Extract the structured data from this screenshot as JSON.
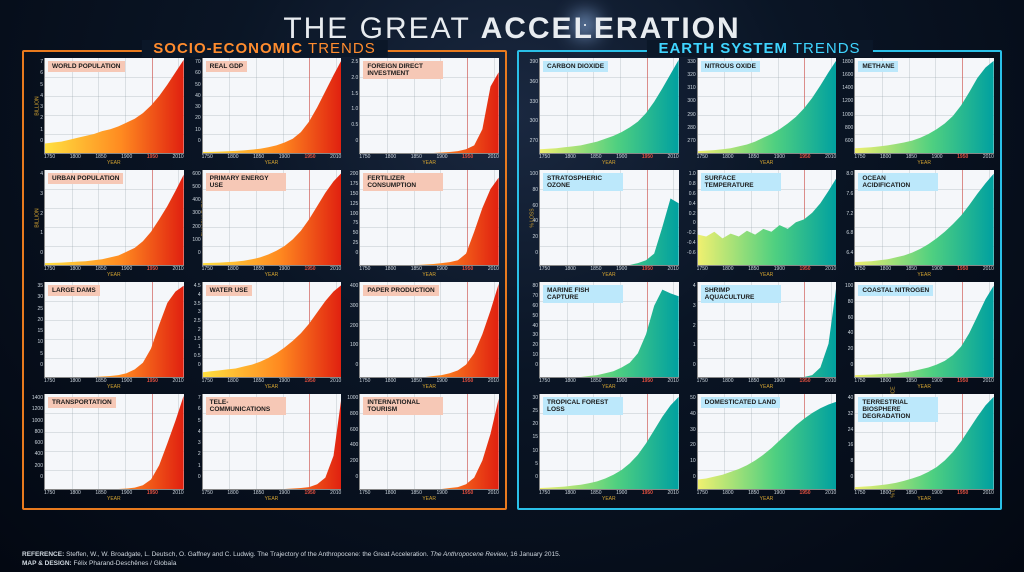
{
  "title_pre": "THE GREAT ",
  "title_bold": "ACCELERATION",
  "x_ticks": [
    "1750",
    "1800",
    "1850",
    "1900",
    "1950",
    "2010"
  ],
  "x_label": "YEAR",
  "marker_year_pos": 0.769,
  "plot_bg": "#f5f7fa",
  "footer_ref_label": "REFERENCE:",
  "footer_ref_text": " Steffen, W., W. Broadgate, L. Deutsch, O. Gaffney and C. Ludwig. The Trajectory of the Anthropocene: the Great Acceleration. ",
  "footer_ref_ital": "The Anthropocene Review",
  "footer_ref_date": ", 16 January 2015.",
  "footer_map_label": "MAP & DESIGN:",
  "footer_map_text": " Félix Pharand-Deschênes / Globaïa",
  "panels": {
    "socio": {
      "title_accent": "SOCIO-ECONOMIC",
      "title_rest": " TRENDS",
      "border_color": "#e87a1e",
      "title_bg": "#f6c8b6",
      "gradient": [
        "#ffe040",
        "#ff8a20",
        "#e02010"
      ],
      "charts": [
        {
          "title": "WORLD POPULATION",
          "ylabel": "BILLION",
          "ylim": [
            0,
            8
          ],
          "yticks": [
            "0",
            "1",
            "2",
            "3",
            "4",
            "5",
            "6",
            "7"
          ],
          "data": [
            0.1,
            0.11,
            0.12,
            0.14,
            0.16,
            0.18,
            0.2,
            0.23,
            0.25,
            0.28,
            0.32,
            0.36,
            0.42,
            0.5,
            0.6,
            0.72,
            0.85,
            0.98
          ]
        },
        {
          "title": "REAL GDP",
          "ylabel": "TRILLION US DOLLARS",
          "ylim": [
            0,
            70
          ],
          "yticks": [
            "0",
            "10",
            "20",
            "30",
            "40",
            "50",
            "60",
            "70"
          ],
          "data": [
            0.01,
            0.012,
            0.015,
            0.018,
            0.022,
            0.028,
            0.035,
            0.045,
            0.06,
            0.08,
            0.11,
            0.15,
            0.22,
            0.33,
            0.48,
            0.65,
            0.82,
            0.98
          ]
        },
        {
          "title": "FOREIGN DIRECT INVESTMENT",
          "ylabel": "TRILLION US DOLLARS",
          "ylim": [
            0,
            2.5
          ],
          "yticks": [
            "0",
            "0.5",
            "1.0",
            "1.5",
            "2.0",
            "2.5"
          ],
          "data": [
            0,
            0,
            0,
            0,
            0,
            0,
            0,
            0,
            0,
            0,
            0.005,
            0.01,
            0.02,
            0.04,
            0.08,
            0.25,
            0.7,
            0.85
          ]
        },
        {
          "title": "URBAN POPULATION",
          "ylabel": "BILLION",
          "ylim": [
            0,
            4
          ],
          "yticks": [
            "0",
            "1",
            "2",
            "3",
            "4"
          ],
          "data": [
            0.02,
            0.022,
            0.025,
            0.03,
            0.035,
            0.04,
            0.05,
            0.06,
            0.08,
            0.1,
            0.14,
            0.18,
            0.25,
            0.35,
            0.48,
            0.62,
            0.78,
            0.95
          ]
        },
        {
          "title": "PRIMARY ENERGY USE",
          "ylabel": "EXAJOULE (EJ)",
          "ylim": [
            0,
            600
          ],
          "yticks": [
            "0",
            "100",
            "200",
            "300",
            "400",
            "500",
            "600"
          ],
          "data": [
            0.02,
            0.022,
            0.025,
            0.03,
            0.035,
            0.045,
            0.06,
            0.08,
            0.11,
            0.15,
            0.2,
            0.27,
            0.36,
            0.48,
            0.62,
            0.76,
            0.88,
            0.97
          ]
        },
        {
          "title": "FERTILIZER CONSUMPTION",
          "ylabel": "MILLION TONNES",
          "ylim": [
            0,
            200
          ],
          "yticks": [
            "0",
            "25",
            "50",
            "75",
            "100",
            "125",
            "150",
            "175",
            "200"
          ],
          "data": [
            0,
            0,
            0,
            0,
            0,
            0,
            0,
            0,
            0.005,
            0.01,
            0.02,
            0.03,
            0.05,
            0.12,
            0.35,
            0.6,
            0.8,
            0.92
          ]
        },
        {
          "title": "LARGE DAMS",
          "ylabel": "THOUSAND DAMS",
          "ylim": [
            0,
            35
          ],
          "yticks": [
            "0",
            "5",
            "10",
            "15",
            "20",
            "25",
            "30",
            "35"
          ],
          "data": [
            0,
            0,
            0,
            0,
            0,
            0,
            0,
            0.005,
            0.01,
            0.02,
            0.04,
            0.08,
            0.15,
            0.3,
            0.55,
            0.78,
            0.9,
            0.96
          ]
        },
        {
          "title": "WATER USE",
          "ylabel": "THOUSAND KM³",
          "ylim": [
            0,
            4.5
          ],
          "yticks": [
            "0",
            "0.5",
            "1",
            "1.5",
            "2",
            "2.5",
            "3",
            "3.5",
            "4",
            "4.5"
          ],
          "data": [
            0.05,
            0.06,
            0.07,
            0.08,
            0.09,
            0.11,
            0.13,
            0.16,
            0.2,
            0.25,
            0.31,
            0.38,
            0.46,
            0.56,
            0.68,
            0.8,
            0.9,
            0.97
          ]
        },
        {
          "title": "PAPER PRODUCTION",
          "ylabel": "MILLION TONNES",
          "ylim": [
            0,
            400
          ],
          "yticks": [
            "0",
            "100",
            "200",
            "300",
            "400"
          ],
          "data": [
            0,
            0,
            0,
            0,
            0,
            0,
            0,
            0,
            0,
            0.01,
            0.02,
            0.04,
            0.07,
            0.13,
            0.25,
            0.45,
            0.7,
            0.98
          ]
        },
        {
          "title": "TRANSPORTATION",
          "ylabel": "MILLION MOTOR VEHICLES",
          "ylim": [
            0,
            1400
          ],
          "yticks": [
            "0",
            "200",
            "400",
            "600",
            "800",
            "1000",
            "1200",
            "1400"
          ],
          "data": [
            0,
            0,
            0,
            0,
            0,
            0,
            0,
            0,
            0,
            0,
            0.005,
            0.015,
            0.04,
            0.1,
            0.25,
            0.48,
            0.72,
            0.98
          ]
        },
        {
          "title": "TELE-COMMUNICATIONS",
          "ylabel": "BILLION PHONE SUBSCRIPTIONS",
          "ylim": [
            0,
            7
          ],
          "yticks": [
            "0",
            "1",
            "2",
            "3",
            "4",
            "5",
            "6",
            "7"
          ],
          "data": [
            0,
            0,
            0,
            0,
            0,
            0,
            0,
            0,
            0,
            0,
            0,
            0.005,
            0.01,
            0.02,
            0.05,
            0.12,
            0.35,
            0.98
          ]
        },
        {
          "title": "INTERNATIONAL TOURISM",
          "ylabel": "MILLION ARRIVALS",
          "ylim": [
            0,
            1000
          ],
          "yticks": [
            "0",
            "200",
            "400",
            "600",
            "800",
            "1000"
          ],
          "data": [
            0,
            0,
            0,
            0,
            0,
            0,
            0,
            0,
            0,
            0,
            0,
            0.01,
            0.02,
            0.05,
            0.12,
            0.3,
            0.58,
            0.95
          ]
        }
      ]
    },
    "earth": {
      "title_accent": "EARTH SYSTEM",
      "title_rest": " TRENDS",
      "border_color": "#2ac0e8",
      "title_bg": "#bce8fb",
      "gradient": [
        "#f0f070",
        "#50d080",
        "#00a0a0"
      ],
      "charts": [
        {
          "title": "CARBON DIOXIDE",
          "ylabel": "ATMOSPHERIC CONC., PPM",
          "ylim": [
            270,
            390
          ],
          "yticks": [
            "270",
            "300",
            "330",
            "360",
            "390"
          ],
          "data": [
            0.04,
            0.045,
            0.05,
            0.06,
            0.07,
            0.08,
            0.1,
            0.12,
            0.15,
            0.18,
            0.22,
            0.27,
            0.33,
            0.42,
            0.54,
            0.68,
            0.83,
            0.98
          ]
        },
        {
          "title": "NITROUS OXIDE",
          "ylabel": "ATMOSPHERIC CONC., PPB",
          "ylim": [
            270,
            330
          ],
          "yticks": [
            "270",
            "280",
            "290",
            "300",
            "310",
            "320",
            "330"
          ],
          "data": [
            0.02,
            0.025,
            0.03,
            0.04,
            0.05,
            0.07,
            0.09,
            0.12,
            0.16,
            0.2,
            0.25,
            0.31,
            0.38,
            0.47,
            0.58,
            0.71,
            0.85,
            0.98
          ]
        },
        {
          "title": "METHANE",
          "ylabel": "ATMOSPHERIC CONC., PPB",
          "ylim": [
            600,
            1800
          ],
          "yticks": [
            "600",
            "800",
            "1000",
            "1200",
            "1400",
            "1600",
            "1800"
          ],
          "data": [
            0.05,
            0.055,
            0.06,
            0.07,
            0.08,
            0.095,
            0.11,
            0.13,
            0.16,
            0.2,
            0.25,
            0.31,
            0.39,
            0.5,
            0.64,
            0.79,
            0.9,
            0.97
          ]
        },
        {
          "title": "STRATOSPHERIC OZONE",
          "ylabel": "% LOSS",
          "ylim": [
            0,
            100
          ],
          "yticks": [
            "0",
            "20",
            "40",
            "60",
            "80",
            "100"
          ],
          "data": [
            0,
            0,
            0,
            0,
            0,
            0,
            0,
            0,
            0,
            0,
            0,
            0,
            0.02,
            0.05,
            0.12,
            0.4,
            0.7,
            0.65
          ]
        },
        {
          "title": "SURFACE TEMPERATURE",
          "ylabel": "TEMPERATURE ANOMALY, °C",
          "ylim": [
            -0.6,
            1.0
          ],
          "yticks": [
            "-0.6",
            "-0.4",
            "-0.2",
            "0",
            "0.2",
            "0.4",
            "0.6",
            "0.8",
            "1.0"
          ],
          "data": [
            0.32,
            0.3,
            0.35,
            0.28,
            0.33,
            0.3,
            0.36,
            0.32,
            0.38,
            0.35,
            0.42,
            0.38,
            0.45,
            0.48,
            0.55,
            0.65,
            0.78,
            0.92
          ]
        },
        {
          "title": "OCEAN ACIDIFICATION",
          "ylabel": "HYDROGEN ION, NMOL KG⁻¹",
          "ylim": [
            6.4,
            8.0
          ],
          "yticks": [
            "6.4",
            "6.8",
            "7.2",
            "7.6",
            "8.0"
          ],
          "data": [
            0.03,
            0.035,
            0.04,
            0.05,
            0.06,
            0.08,
            0.1,
            0.13,
            0.17,
            0.22,
            0.28,
            0.35,
            0.43,
            0.52,
            0.63,
            0.75,
            0.86,
            0.96
          ]
        },
        {
          "title": "MARINE FISH CAPTURE",
          "ylabel": "MILLION TONNES",
          "ylim": [
            0,
            80
          ],
          "yticks": [
            "0",
            "10",
            "20",
            "30",
            "40",
            "50",
            "60",
            "70",
            "80"
          ],
          "data": [
            0,
            0,
            0,
            0,
            0,
            0,
            0.01,
            0.02,
            0.04,
            0.06,
            0.1,
            0.15,
            0.25,
            0.45,
            0.75,
            0.92,
            0.88,
            0.85
          ]
        },
        {
          "title": "SHRIMP AQUACULTURE",
          "ylabel": "MILLION TONNES",
          "ylim": [
            0,
            4
          ],
          "yticks": [
            "0",
            "1",
            "2",
            "3",
            "4"
          ],
          "data": [
            0,
            0,
            0,
            0,
            0,
            0,
            0,
            0,
            0,
            0,
            0,
            0,
            0,
            0,
            0.02,
            0.1,
            0.35,
            0.98
          ]
        },
        {
          "title": "COASTAL NITROGEN",
          "ylabel": "HUMAN N FLUX, MTON YR⁻¹",
          "ylim": [
            0,
            100
          ],
          "yticks": [
            "0",
            "20",
            "40",
            "60",
            "80",
            "100"
          ],
          "data": [
            0.02,
            0.022,
            0.025,
            0.03,
            0.035,
            0.04,
            0.05,
            0.06,
            0.08,
            0.1,
            0.13,
            0.17,
            0.23,
            0.32,
            0.46,
            0.64,
            0.82,
            0.96
          ]
        },
        {
          "title": "TROPICAL FOREST LOSS",
          "ylabel": "% LOSS (AREA)",
          "ylim": [
            0,
            30
          ],
          "yticks": [
            "0",
            "5",
            "10",
            "15",
            "20",
            "25",
            "30"
          ],
          "data": [
            0.01,
            0.015,
            0.02,
            0.025,
            0.035,
            0.045,
            0.06,
            0.08,
            0.11,
            0.15,
            0.2,
            0.27,
            0.36,
            0.48,
            0.62,
            0.76,
            0.88,
            0.97
          ]
        },
        {
          "title": "DOMESTICATED LAND",
          "ylabel": "% OF TOTAL LAND AREA",
          "ylim": [
            0,
            50
          ],
          "yticks": [
            "0",
            "10",
            "20",
            "30",
            "40",
            "50"
          ],
          "data": [
            0.1,
            0.11,
            0.13,
            0.15,
            0.18,
            0.21,
            0.25,
            0.3,
            0.36,
            0.43,
            0.51,
            0.59,
            0.67,
            0.74,
            0.8,
            0.85,
            0.89,
            0.92
          ]
        },
        {
          "title": "TERRESTRIAL BIOSPHERE DEGRADATION",
          "ylabel": "% DECREASE IN MEAN SPECIES ABUNDANCE",
          "ylim": [
            0,
            40
          ],
          "yticks": [
            "0",
            "8",
            "16",
            "24",
            "32",
            "40"
          ],
          "data": [
            0.02,
            0.025,
            0.03,
            0.04,
            0.05,
            0.065,
            0.085,
            0.11,
            0.14,
            0.18,
            0.23,
            0.3,
            0.39,
            0.5,
            0.63,
            0.76,
            0.88,
            0.97
          ]
        }
      ]
    }
  }
}
